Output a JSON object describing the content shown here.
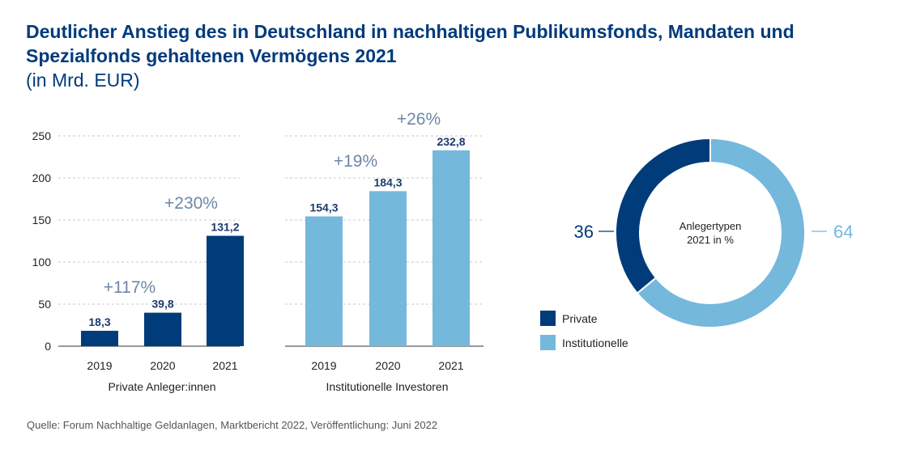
{
  "title": "Deutlicher Anstieg des in Deutschland in nachhaltigen Publikumsfonds, Mandaten und Spezialfonds gehaltenen Vermögens 2021",
  "subtitle": "(in Mrd. EUR)",
  "source": "Quelle: Forum Nachhaltige Geldanlagen, Marktbericht 2022, Veröffentlichung: Juni 2022",
  "colors": {
    "private": "#003b7a",
    "institutional": "#74b8dc",
    "title": "#003a7d",
    "growth": "#6d87a8"
  },
  "chart_data": [
    {
      "type": "bar",
      "title": "Private Anleger:innen",
      "categories": [
        "2019",
        "2020",
        "2021"
      ],
      "values": [
        18.3,
        39.8,
        131.2
      ],
      "value_labels": [
        "18,3",
        "39,8",
        "131,2"
      ],
      "growth_labels": [
        "+117%",
        "+230%"
      ],
      "ylim": [
        0,
        250
      ],
      "yticks": [
        "0",
        "50",
        "100",
        "150",
        "200",
        "250"
      ],
      "grid": true
    },
    {
      "type": "bar",
      "title": "Institutionelle Investoren",
      "categories": [
        "2019",
        "2020",
        "2021"
      ],
      "values": [
        154.3,
        184.3,
        232.8
      ],
      "value_labels": [
        "154,3",
        "184,3",
        "232,8"
      ],
      "growth_labels": [
        "+19%",
        "+26%"
      ],
      "ylim": [
        0,
        250
      ],
      "grid": true
    },
    {
      "type": "pie",
      "title": "Anlegertypen 2021 in %",
      "labels": [
        "Private",
        "Institutionelle"
      ],
      "values": [
        36,
        64
      ],
      "value_labels": [
        "36",
        "64"
      ],
      "legend": "bottom-left"
    }
  ]
}
